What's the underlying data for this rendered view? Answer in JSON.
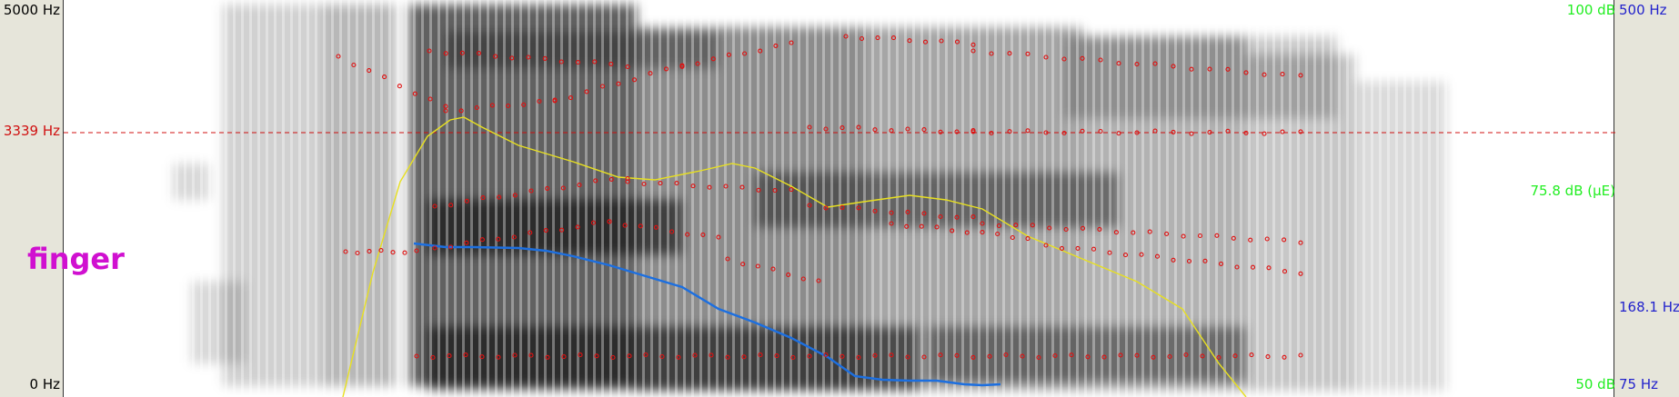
{
  "axis_left": {
    "top": "5000 Hz",
    "cursor": "3339 Hz",
    "bottom": "0 Hz"
  },
  "axis_right": {
    "intensity_top": "100 dB",
    "intensity_mark": "75.8 dB (µE)",
    "intensity_bottom": "50 dB",
    "pitch_top": "500 Hz",
    "pitch_mark": "168.1 Hz",
    "pitch_bottom": "75 Hz"
  },
  "word_label": "finger",
  "colors": {
    "background": "#e6e5da",
    "frequency_label": "#000000",
    "cursor": "#d01010",
    "intensity": "#22ee22",
    "pitch": "#2222cc",
    "formant": "#e01010",
    "intensity_curve": "#e8e020",
    "pitch_curve": "#1c6fe0",
    "word": "#d010d0"
  }
}
